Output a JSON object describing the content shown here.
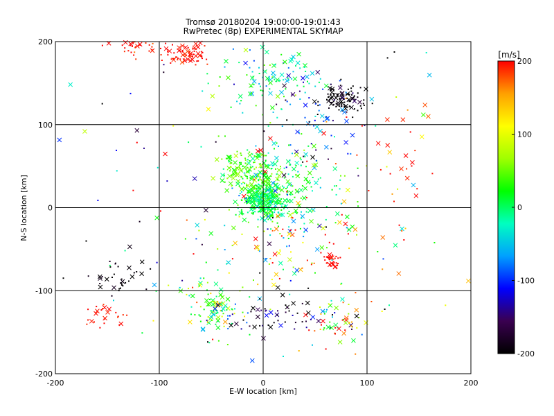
{
  "chart_data": {
    "type": "scatter",
    "title": "Tromsø 20180204 19:00:00-19:01:43",
    "subtitle": "RwPretec (8p) EXPERIMENTAL SKYMAP",
    "xlabel": "E-W location [km]",
    "ylabel": "N-S location [km]",
    "xlim": [
      -200,
      200
    ],
    "ylim": [
      -200,
      200
    ],
    "xticks": [
      -200,
      -100,
      0,
      100,
      200
    ],
    "yticks": [
      -200,
      -100,
      0,
      100,
      200
    ],
    "xtick_labels": [
      "-200",
      "-100",
      "0",
      "100",
      "200"
    ],
    "ytick_labels": [
      "-200",
      "-100",
      "0",
      "100",
      "200"
    ],
    "grid": true,
    "marker_styles": [
      "dot",
      "cross"
    ],
    "colorbar": {
      "label": "[m/s]",
      "min": -200,
      "max": 200,
      "ticks": [
        200,
        100,
        0,
        -100,
        -200
      ],
      "tick_labels": [
        "200",
        "100",
        "0",
        "-100",
        "-200"
      ],
      "colormap": [
        "#000000",
        "#3a0050",
        "#0000ff",
        "#00a0ff",
        "#00ffc0",
        "#00ff00",
        "#a0ff00",
        "#ffff00",
        "#ffa000",
        "#ff0000"
      ]
    },
    "clusters": [
      {
        "x": 0,
        "y": 10,
        "sx": 10,
        "sy": 12,
        "n": 320,
        "v": 10,
        "sv": 25
      },
      {
        "x": -15,
        "y": 45,
        "sx": 14,
        "sy": 10,
        "n": 140,
        "v": 40,
        "sv": 25
      },
      {
        "x": 25,
        "y": 30,
        "sx": 22,
        "sy": 30,
        "n": 170,
        "v": -10,
        "sv": 40
      },
      {
        "x": 10,
        "y": 150,
        "sx": 25,
        "sy": 20,
        "n": 120,
        "v": -20,
        "sv": 45
      },
      {
        "x": 75,
        "y": 130,
        "sx": 12,
        "sy": 8,
        "n": 90,
        "v": -200,
        "sv": 8
      },
      {
        "x": 55,
        "y": 110,
        "sx": 25,
        "sy": 30,
        "n": 60,
        "v": -130,
        "sv": 50
      },
      {
        "x": -75,
        "y": 185,
        "sx": 12,
        "sy": 8,
        "n": 70,
        "v": 200,
        "sv": 10
      },
      {
        "x": -120,
        "y": 195,
        "sx": 12,
        "sy": 6,
        "n": 30,
        "v": 200,
        "sv": 15
      },
      {
        "x": -45,
        "y": -120,
        "sx": 15,
        "sy": 15,
        "n": 110,
        "v": 10,
        "sv": 60
      },
      {
        "x": 70,
        "y": -140,
        "sx": 15,
        "sy": 15,
        "n": 60,
        "v": 80,
        "sv": 110
      },
      {
        "x": 65,
        "y": -63,
        "sx": 4,
        "sy": 5,
        "n": 30,
        "v": 200,
        "sv": 5
      },
      {
        "x": -140,
        "y": -85,
        "sx": 12,
        "sy": 12,
        "n": 35,
        "v": -200,
        "sv": 15
      },
      {
        "x": -150,
        "y": -130,
        "sx": 12,
        "sy": 8,
        "n": 25,
        "v": 200,
        "sv": 10
      },
      {
        "x": 10,
        "y": -135,
        "sx": 25,
        "sy": 15,
        "n": 50,
        "v": -170,
        "sv": 40
      },
      {
        "x": 20,
        "y": -40,
        "sx": 45,
        "sy": 35,
        "n": 100,
        "v": 100,
        "sv": 130
      },
      {
        "x": 0,
        "y": 0,
        "sx": 110,
        "sy": 110,
        "n": 170,
        "v": 0,
        "sv": 140
      },
      {
        "x": 140,
        "y": 40,
        "sx": 25,
        "sy": 40,
        "n": 30,
        "v": 200,
        "sv": 25
      }
    ]
  }
}
